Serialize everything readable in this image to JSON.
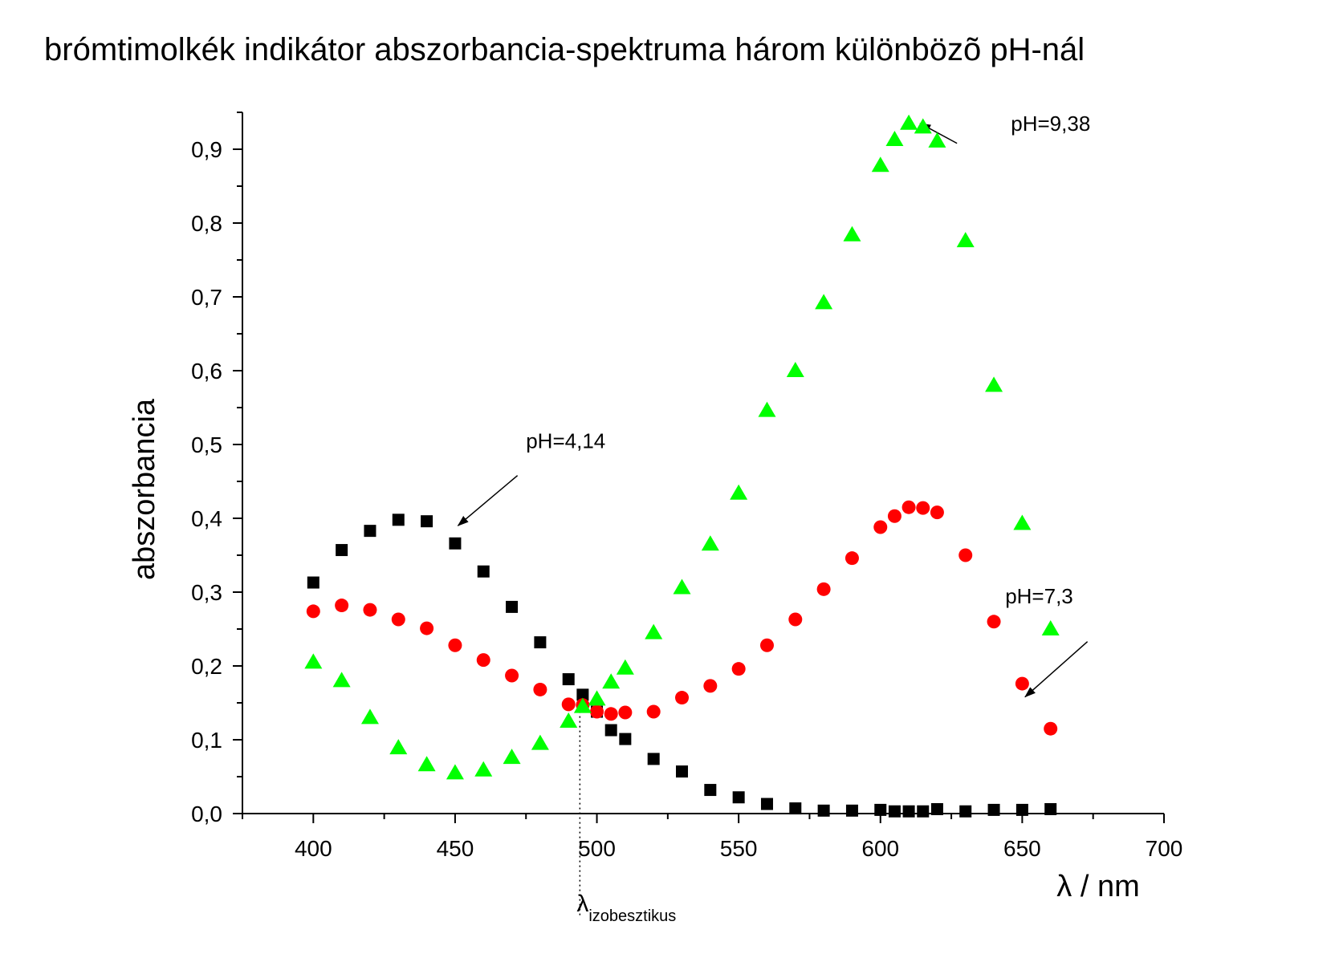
{
  "chart_data": {
    "type": "scatter",
    "title": "brómtimolkék indikátor abszorbancia-spektruma három különbözõ pH-nál",
    "xlabel": "λ / nm",
    "ylabel": "abszorbancia",
    "xlim": [
      375,
      700
    ],
    "ylim": [
      0,
      0.95
    ],
    "x_ticks": [
      400,
      450,
      500,
      550,
      600,
      650,
      700
    ],
    "y_ticks": [
      0.0,
      0.1,
      0.2,
      0.3,
      0.4,
      0.5,
      0.6,
      0.7,
      0.8,
      0.9
    ],
    "y_tick_labels": [
      "0,0",
      "0,1",
      "0,2",
      "0,3",
      "0,4",
      "0,5",
      "0,6",
      "0,7",
      "0,8",
      "0,9"
    ],
    "grid": false,
    "series": [
      {
        "name": "pH=4,14",
        "marker": "square",
        "color": "#000000",
        "x": [
          400,
          410,
          420,
          430,
          440,
          450,
          460,
          470,
          480,
          490,
          495,
          500,
          505,
          510,
          520,
          530,
          540,
          550,
          560,
          570,
          580,
          590,
          600,
          605,
          610,
          615,
          620,
          630,
          640,
          650,
          660
        ],
        "y": [
          0.313,
          0.357,
          0.383,
          0.398,
          0.396,
          0.366,
          0.328,
          0.28,
          0.232,
          0.182,
          0.161,
          0.138,
          0.113,
          0.101,
          0.074,
          0.057,
          0.032,
          0.022,
          0.013,
          0.007,
          0.004,
          0.004,
          0.005,
          0.003,
          0.003,
          0.003,
          0.006,
          0.003,
          0.005,
          0.005,
          0.006
        ]
      },
      {
        "name": "pH=7,3",
        "marker": "circle",
        "color": "#ff0000",
        "x": [
          400,
          410,
          420,
          430,
          440,
          450,
          460,
          470,
          480,
          490,
          495,
          500,
          505,
          510,
          520,
          530,
          540,
          550,
          560,
          570,
          580,
          590,
          600,
          605,
          610,
          615,
          620,
          630,
          640,
          650,
          660
        ],
        "y": [
          0.274,
          0.282,
          0.276,
          0.263,
          0.251,
          0.228,
          0.208,
          0.187,
          0.168,
          0.148,
          0.147,
          0.138,
          0.135,
          0.137,
          0.138,
          0.157,
          0.173,
          0.196,
          0.228,
          0.263,
          0.304,
          0.346,
          0.388,
          0.403,
          0.415,
          0.414,
          0.408,
          0.35,
          0.26,
          0.176,
          0.115
        ]
      },
      {
        "name": "pH=9,38",
        "marker": "triangle",
        "color": "#00ff00",
        "x": [
          400,
          410,
          420,
          430,
          440,
          450,
          460,
          470,
          480,
          490,
          495,
          500,
          505,
          510,
          520,
          530,
          540,
          550,
          560,
          570,
          580,
          590,
          600,
          605,
          610,
          615,
          620,
          630,
          640,
          650,
          660
        ],
        "y": [
          0.205,
          0.18,
          0.13,
          0.089,
          0.066,
          0.055,
          0.059,
          0.076,
          0.095,
          0.125,
          0.145,
          0.155,
          0.178,
          0.197,
          0.245,
          0.306,
          0.365,
          0.434,
          0.546,
          0.6,
          0.692,
          0.784,
          0.878,
          0.913,
          0.935,
          0.93,
          0.911,
          0.776,
          0.58,
          0.393,
          0.25
        ]
      }
    ],
    "annotations": [
      {
        "id": "ph414",
        "text": "pH=4,14",
        "text_x": 475,
        "text_y": 0.495,
        "arrow_from": [
          472,
          0.458
        ],
        "arrow_to": [
          451,
          0.39
        ]
      },
      {
        "id": "ph73",
        "text": "pH=7,3",
        "text_x": 644,
        "text_y": 0.285,
        "arrow_from": [
          673,
          0.233
        ],
        "arrow_to": [
          651,
          0.158
        ]
      },
      {
        "id": "ph938",
        "text": "pH=9,38",
        "text_x": 646,
        "text_y": 0.925,
        "arrow_from": [
          627,
          0.908
        ],
        "arrow_to": [
          614,
          0.935
        ]
      }
    ],
    "isosbestic": {
      "x": 494,
      "label": "λ",
      "subscript": "izobesztikus"
    }
  }
}
